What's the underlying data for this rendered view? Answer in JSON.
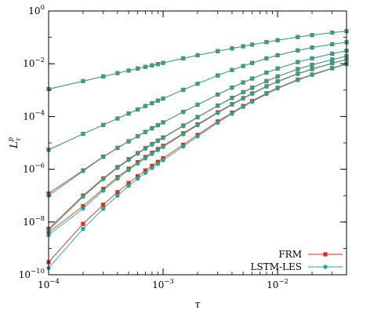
{
  "chart_data": {
    "type": "scatter",
    "xlabel": "τ",
    "ylabel": "L_τ^p",
    "xscale": "log",
    "yscale": "log",
    "xlim": [
      0.0001,
      0.04
    ],
    "ylim": [
      1e-10,
      1
    ],
    "grid": false,
    "legend_position": "bottom-right",
    "x_ticks": [
      {
        "value": 0.0001,
        "base": "10",
        "exp": "−4"
      },
      {
        "value": 0.001,
        "base": "10",
        "exp": "−3"
      },
      {
        "value": 0.01,
        "base": "10",
        "exp": "−2"
      }
    ],
    "y_ticks": [
      {
        "value": 1,
        "base": "10",
        "exp": "0"
      },
      {
        "value": 0.01,
        "base": "10",
        "exp": "−2"
      },
      {
        "value": 0.0001,
        "base": "10",
        "exp": "−4"
      },
      {
        "value": 1e-06,
        "base": "10",
        "exp": "−6"
      },
      {
        "value": 1e-08,
        "base": "10",
        "exp": "−8"
      },
      {
        "value": 1e-10,
        "base": "10",
        "exp": "−10"
      }
    ],
    "x": [
      0.0001,
      0.0002,
      0.0003,
      0.0004,
      0.0005,
      0.0006,
      0.0007,
      0.0008,
      0.0009,
      0.001,
      0.0015,
      0.002,
      0.003,
      0.004,
      0.005,
      0.006,
      0.008,
      0.01,
      0.015,
      0.02,
      0.03,
      0.04
    ],
    "series": [
      {
        "name": "FRM",
        "color": "#e02a1a",
        "marker": "square",
        "groups": [
          {
            "order": 1,
            "values": [
              0.0011,
              0.0022,
              0.0033,
              0.0044,
              0.0055,
              0.0066,
              0.0076,
              0.0087,
              0.0097,
              0.0108,
              0.016,
              0.021,
              0.03,
              0.038,
              0.046,
              0.053,
              0.066,
              0.078,
              0.103,
              0.122,
              0.151,
              0.172
            ]
          },
          {
            "order": 2,
            "values": [
              5.5e-06,
              2.2e-05,
              4.8e-05,
              8.4e-05,
              0.00013,
              0.000185,
              0.00025,
              0.00032,
              0.0004,
              0.00048,
              0.00103,
              0.00175,
              0.0036,
              0.0058,
              0.0082,
              0.0107,
              0.016,
              0.021,
              0.032,
              0.041,
              0.055,
              0.065
            ]
          },
          {
            "order": 3,
            "values": [
              1.2e-07,
              9e-07,
              3e-06,
              6.5e-06,
              1.15e-05,
              1.8e-05,
              2.6e-05,
              3.6e-05,
              4.7e-05,
              6e-05,
              0.00015,
              0.00028,
              0.00068,
              0.00125,
              0.00195,
              0.00275,
              0.0046,
              0.0066,
              0.0116,
              0.016,
              0.024,
              0.031
            ]
          },
          {
            "order": 4,
            "values": [
              5.5e-09,
              1e-07,
              4.5e-07,
              1.2e-06,
              2.4e-06,
              4.1e-06,
              6.3e-06,
              9e-06,
              1.22e-05,
              1.6e-05,
              4.5e-05,
              9.5e-05,
              0.00026,
              0.00051,
              0.00084,
              0.00123,
              0.0022,
              0.0033,
              0.0063,
              0.0091,
              0.0145,
              0.0195
            ]
          },
          {
            "order": 5,
            "values": [
              4e-09,
              4e-08,
              1.8e-07,
              5e-07,
              1.05e-06,
              1.85e-06,
              2.9e-06,
              4.2e-06,
              5.8e-06,
              7.7e-06,
              2.3e-05,
              5e-05,
              0.000145,
              0.000295,
              0.0005,
              0.00075,
              0.0014,
              0.00215,
              0.0042,
              0.0063,
              0.0105,
              0.0145
            ]
          },
          {
            "order": 6,
            "values": [
              3e-10,
              8.5e-09,
              4.5e-08,
              1.35e-07,
              3e-07,
              5.5e-07,
              9e-07,
              1.35e-06,
              1.9e-06,
              2.6e-06,
              8.5e-06,
              2e-05,
              6.5e-05,
              0.00014,
              0.00025,
              0.00039,
              0.00076,
              0.00122,
              0.0025,
              0.0039,
              0.0068,
              0.0098
            ]
          }
        ]
      },
      {
        "name": "LSTM-LES",
        "color": "#22a88e",
        "marker": "circle",
        "groups": [
          {
            "order": 1,
            "values": [
              0.00108,
              0.00218,
              0.00328,
              0.00438,
              0.00548,
              0.00655,
              0.0076,
              0.0086,
              0.0096,
              0.0107,
              0.0159,
              0.0209,
              0.0299,
              0.0378,
              0.0458,
              0.0528,
              0.0657,
              0.0776,
              0.1025,
              0.1215,
              0.1505,
              0.1715
            ]
          },
          {
            "order": 2,
            "values": [
              5.4e-06,
              2.18e-05,
              4.75e-05,
              8.3e-05,
              0.000128,
              0.000183,
              0.000248,
              0.000318,
              0.000397,
              0.000478,
              0.00102,
              0.00174,
              0.00358,
              0.00578,
              0.00815,
              0.01065,
              0.0159,
              0.0209,
              0.0319,
              0.0408,
              0.0548,
              0.0648
            ]
          },
          {
            "order": 3,
            "values": [
              1e-07,
              8.5e-07,
              2.9e-06,
              6.3e-06,
              1.12e-05,
              1.76e-05,
              2.55e-05,
              3.5e-05,
              4.6e-05,
              5.9e-05,
              0.000147,
              0.000276,
              0.00067,
              0.00123,
              0.00193,
              0.00272,
              0.00455,
              0.00655,
              0.0115,
              0.0159,
              0.0239,
              0.0309
            ]
          },
          {
            "order": 4,
            "values": [
              4.8e-09,
              9e-08,
              4.2e-07,
              1.12e-06,
              2.25e-06,
              3.9e-06,
              6e-06,
              8.6e-06,
              1.17e-05,
              1.54e-05,
              4.35e-05,
              9.2e-05,
              0.000252,
              0.000495,
              0.00082,
              0.0012,
              0.00215,
              0.00325,
              0.0062,
              0.009,
              0.0143,
              0.0193
            ]
          },
          {
            "order": 5,
            "values": [
              3.2e-09,
              3.2e-08,
              1.55e-07,
              4.4e-07,
              9.3e-07,
              1.65e-06,
              2.6e-06,
              3.8e-06,
              5.3e-06,
              7e-06,
              2.12e-05,
              4.65e-05,
              0.000136,
              0.00028,
              0.000475,
              0.00072,
              0.00135,
              0.00208,
              0.00408,
              0.00615,
              0.0103,
              0.0143
            ]
          },
          {
            "order": 6,
            "values": [
              1.8e-10,
              5.5e-09,
              3.2e-08,
              1e-07,
              2.35e-07,
              4.4e-07,
              7.3e-07,
              1.12e-06,
              1.6e-06,
              2.2e-06,
              7.3e-06,
              1.75e-05,
              5.8e-05,
              0.000127,
              0.00023,
              0.00036,
              0.00071,
              0.00115,
              0.00238,
              0.00375,
              0.0066,
              0.0096
            ]
          }
        ]
      }
    ]
  }
}
